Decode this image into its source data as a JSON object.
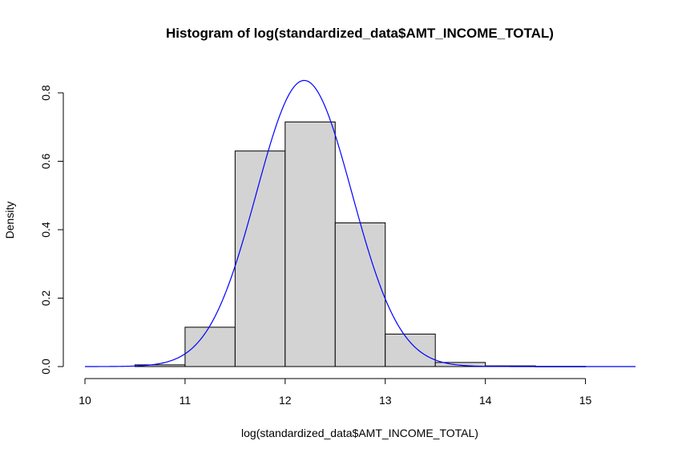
{
  "chart_data": {
    "type": "bar",
    "title": "Histogram of log(standardized_data$AMT_INCOME_TOTAL)",
    "xlabel": "log(standardized_data$AMT_INCOME_TOTAL)",
    "ylabel": "Density",
    "xlim": [
      10,
      15.5
    ],
    "ylim": [
      0,
      0.8
    ],
    "x_ticks": [
      "10",
      "11",
      "12",
      "13",
      "14",
      "15"
    ],
    "y_ticks": [
      "0.0",
      "0.2",
      "0.4",
      "0.6",
      "0.8"
    ],
    "bins": [
      {
        "from": 10.5,
        "to": 11.0,
        "density": 0.005
      },
      {
        "from": 11.0,
        "to": 11.5,
        "density": 0.115
      },
      {
        "from": 11.5,
        "to": 12.0,
        "density": 0.63
      },
      {
        "from": 12.0,
        "to": 12.5,
        "density": 0.715
      },
      {
        "from": 12.5,
        "to": 13.0,
        "density": 0.42
      },
      {
        "from": 13.0,
        "to": 13.5,
        "density": 0.095
      },
      {
        "from": 13.5,
        "to": 14.0,
        "density": 0.012
      },
      {
        "from": 14.0,
        "to": 14.5,
        "density": 0.002
      },
      {
        "from": 14.5,
        "to": 15.0,
        "density": 0.0005
      }
    ],
    "density_curve": {
      "type": "normal",
      "mean": 12.19,
      "sd": 0.477,
      "x_range": [
        10.0,
        15.5
      ]
    },
    "colors": {
      "bar_fill": "#d3d3d3",
      "bar_stroke": "#000000",
      "curve": "#0000ff"
    },
    "grid": false
  }
}
